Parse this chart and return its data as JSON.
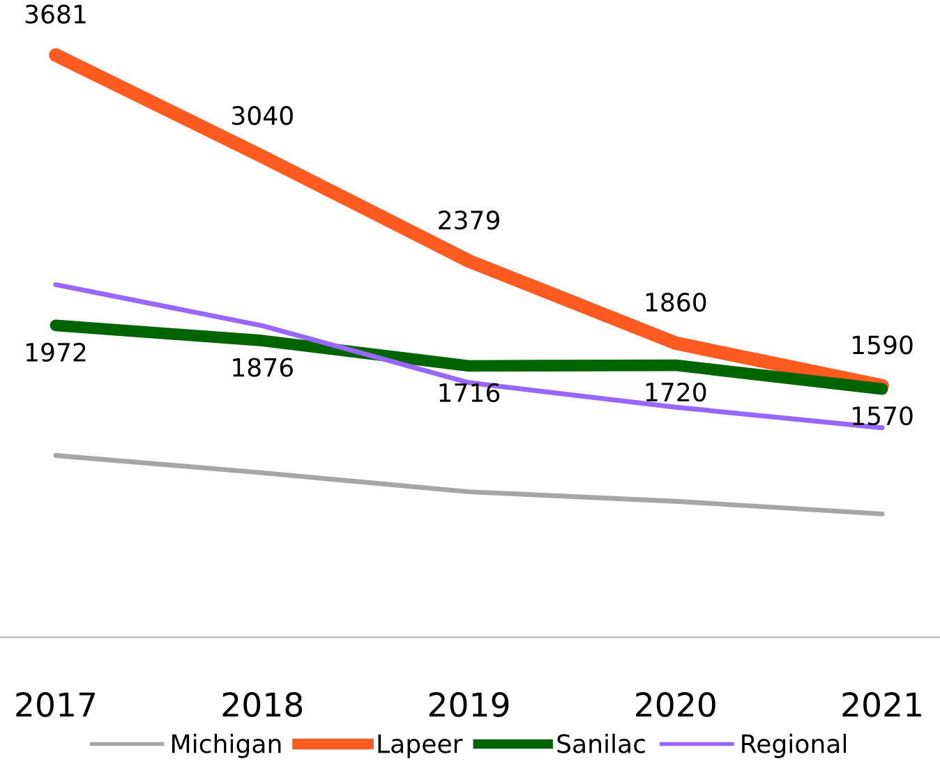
{
  "chart_data": {
    "type": "line",
    "categories": [
      "2017",
      "2018",
      "2019",
      "2020",
      "2021"
    ],
    "series": [
      {
        "name": "Michigan",
        "color": "#a6a6a6",
        "values": [
          1150,
          1040,
          920,
          860,
          780
        ]
      },
      {
        "name": "Lapeer",
        "color": "#ff5a1f",
        "values": [
          3681,
          3040,
          2379,
          1860,
          1590
        ],
        "value_labels": [
          "3681",
          "3040",
          "2379",
          "1860",
          "1590"
        ]
      },
      {
        "name": "Sanilac",
        "color": "#006400",
        "values": [
          1972,
          1876,
          1716,
          1720,
          1570
        ],
        "value_labels": [
          "1972",
          "1876",
          "1716",
          "1720",
          "1570"
        ]
      },
      {
        "name": "Regional",
        "color": "#9966ff",
        "values": [
          2230,
          1970,
          1610,
          1455,
          1325
        ]
      }
    ],
    "tick_labels": "x",
    "grid": false,
    "legend": "bottom",
    "marker": "none",
    "line_style": "solid"
  }
}
